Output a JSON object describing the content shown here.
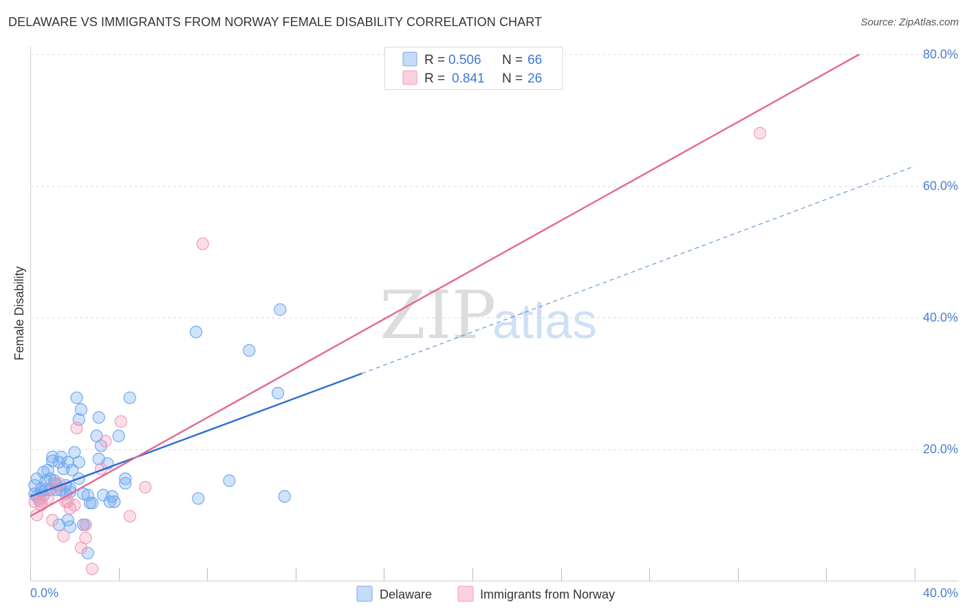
{
  "title": "DELAWARE VS IMMIGRANTS FROM NORWAY FEMALE DISABILITY CORRELATION CHART",
  "source": "Source: ZipAtlas.com",
  "watermark": {
    "zip": "ZIP",
    "atlas": "atlas"
  },
  "legend": [
    {
      "r_label": "R =",
      "r_value": "0.506",
      "n_label": "N =",
      "n_value": "66",
      "color": "#6fa8f0"
    },
    {
      "r_label": "R =",
      "r_value": "0.841",
      "n_label": "N =",
      "n_value": "26",
      "color": "#f29ab8"
    }
  ],
  "chart_data": {
    "type": "scatter",
    "title": "DELAWARE VS IMMIGRANTS FROM NORWAY FEMALE DISABILITY CORRELATION CHART",
    "xlabel": "",
    "ylabel": "Female Disability",
    "xlim": [
      0,
      40
    ],
    "ylim": [
      0,
      80
    ],
    "x_tick_labels": [
      "0.0%",
      "40.0%"
    ],
    "y_ticks": [
      20,
      40,
      60,
      80
    ],
    "y_tick_labels": [
      "20.0%",
      "40.0%",
      "60.0%",
      "80.0%"
    ],
    "grid": true,
    "legend_position": "top-center",
    "series": [
      {
        "name": "Delaware",
        "color": "#6fa8f0",
        "line_color": "#2f6fd0",
        "trend": {
          "x0": 0,
          "y0": 12.8,
          "x1": 15,
          "y1": 31.5,
          "dashed_to_x": 40,
          "dashed_to_y": 63
        },
        "points": [
          [
            0.2,
            13.2
          ],
          [
            0.3,
            12.8
          ],
          [
            0.3,
            15.5
          ],
          [
            0.5,
            14.0
          ],
          [
            0.5,
            13.5
          ],
          [
            0.6,
            16.5
          ],
          [
            0.7,
            15.2
          ],
          [
            0.7,
            13.8
          ],
          [
            0.8,
            16.8
          ],
          [
            0.9,
            15.5
          ],
          [
            0.9,
            13.8
          ],
          [
            1.0,
            18.2
          ],
          [
            1.0,
            18.8
          ],
          [
            1.1,
            15.2
          ],
          [
            1.1,
            14.8
          ],
          [
            1.2,
            14.5
          ],
          [
            1.2,
            13.8
          ],
          [
            1.3,
            8.5
          ],
          [
            1.3,
            18.0
          ],
          [
            1.4,
            18.8
          ],
          [
            1.4,
            13.8
          ],
          [
            1.5,
            17.0
          ],
          [
            1.6,
            14.5
          ],
          [
            1.6,
            13.2
          ],
          [
            1.7,
            18.0
          ],
          [
            1.7,
            9.2
          ],
          [
            1.8,
            14.0
          ],
          [
            1.8,
            13.5
          ],
          [
            1.8,
            8.2
          ],
          [
            1.9,
            16.8
          ],
          [
            2.0,
            19.5
          ],
          [
            2.1,
            27.8
          ],
          [
            2.2,
            24.5
          ],
          [
            2.2,
            15.5
          ],
          [
            2.2,
            18.0
          ],
          [
            2.3,
            26.0
          ],
          [
            2.4,
            8.5
          ],
          [
            2.4,
            13.2
          ],
          [
            2.5,
            8.5
          ],
          [
            2.6,
            13.0
          ],
          [
            2.6,
            4.2
          ],
          [
            2.7,
            11.8
          ],
          [
            2.8,
            11.8
          ],
          [
            3.0,
            22.0
          ],
          [
            3.1,
            18.5
          ],
          [
            3.1,
            24.8
          ],
          [
            3.2,
            20.5
          ],
          [
            3.3,
            13.0
          ],
          [
            3.5,
            17.8
          ],
          [
            3.6,
            12.0
          ],
          [
            3.7,
            12.8
          ],
          [
            3.8,
            12.0
          ],
          [
            4.0,
            22.0
          ],
          [
            4.3,
            15.5
          ],
          [
            4.3,
            14.8
          ],
          [
            4.5,
            27.8
          ],
          [
            7.5,
            37.8
          ],
          [
            7.6,
            12.5
          ],
          [
            9.0,
            15.2
          ],
          [
            9.9,
            35.0
          ],
          [
            11.2,
            28.5
          ],
          [
            11.3,
            41.2
          ],
          [
            11.5,
            12.8
          ],
          [
            0.4,
            12.5
          ],
          [
            0.2,
            14.5
          ],
          [
            0.6,
            13.0
          ]
        ]
      },
      {
        "name": "Immigrants from Norway",
        "color": "#f29ab8",
        "line_color": "#e26b93",
        "trend": {
          "x0": 0,
          "y0": 9.8,
          "x1": 37.5,
          "y1": 80
        },
        "points": [
          [
            0.2,
            12.0
          ],
          [
            0.3,
            10.0
          ],
          [
            0.5,
            11.5
          ],
          [
            0.5,
            12.0
          ],
          [
            0.8,
            12.5
          ],
          [
            1.0,
            9.2
          ],
          [
            1.3,
            14.8
          ],
          [
            1.5,
            6.8
          ],
          [
            1.6,
            12.0
          ],
          [
            1.7,
            12.0
          ],
          [
            1.8,
            11.0
          ],
          [
            2.1,
            23.2
          ],
          [
            2.3,
            5.0
          ],
          [
            2.5,
            6.5
          ],
          [
            2.5,
            8.5
          ],
          [
            2.8,
            1.8
          ],
          [
            3.2,
            17.0
          ],
          [
            3.4,
            21.2
          ],
          [
            4.1,
            24.2
          ],
          [
            4.5,
            9.8
          ],
          [
            5.2,
            14.2
          ],
          [
            7.8,
            51.2
          ],
          [
            33.0,
            68.0
          ],
          [
            0.4,
            12.2
          ],
          [
            1.1,
            14.2
          ],
          [
            2.0,
            11.5
          ]
        ]
      }
    ]
  }
}
